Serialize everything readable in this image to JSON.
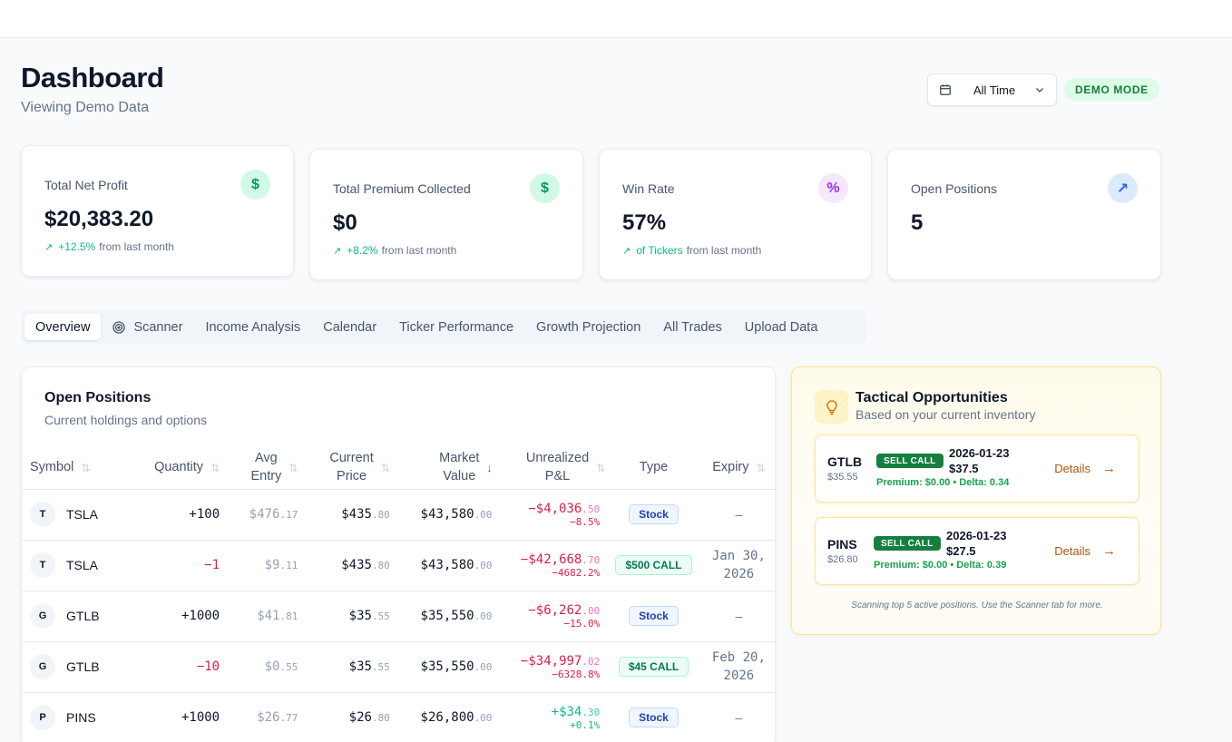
{
  "header": {
    "title": "Dashboard",
    "subtitle": "Viewing Demo Data"
  },
  "date_range": {
    "label": "All Time"
  },
  "demo_badge": "DEMO MODE",
  "stats": [
    {
      "label": "Total Net Profit",
      "value": "$20,383.20",
      "trend_pct": "+12.5%",
      "trend_text": "from last month",
      "icon": "dollar-icon",
      "icon_glyph": "$",
      "icon_bg": "#d1fae5",
      "icon_color": "#059669"
    },
    {
      "label": "Total Premium Collected",
      "value": "$0",
      "trend_pct": "+8.2%",
      "trend_text": "from last month",
      "icon": "dollar-icon",
      "icon_glyph": "$",
      "icon_bg": "#d1fae5",
      "icon_color": "#059669"
    },
    {
      "label": "Win Rate",
      "value": "57%",
      "trend_pct": "of Tickers",
      "trend_text": "from last month",
      "icon": "percent-icon",
      "icon_glyph": "%",
      "icon_bg": "#f3e8ff",
      "icon_color": "#9333ea"
    },
    {
      "label": "Open Positions",
      "value": "5",
      "icon": "arrow-up-right-icon",
      "icon_glyph": "↗",
      "icon_bg": "#dbeafe",
      "icon_color": "#2563eb"
    }
  ],
  "tabs": [
    {
      "label": "Overview",
      "active": true
    },
    {
      "label": "Scanner",
      "icon": "target-icon"
    },
    {
      "label": "Income Analysis"
    },
    {
      "label": "Calendar"
    },
    {
      "label": "Ticker Performance"
    },
    {
      "label": "Growth Projection"
    },
    {
      "label": "All Trades"
    },
    {
      "label": "Upload Data"
    }
  ],
  "open_positions": {
    "title": "Open Positions",
    "subtitle": "Current holdings and options",
    "columns": {
      "symbol": "Symbol",
      "quantity": "Quantity",
      "avg_entry": [
        "Avg",
        "Entry"
      ],
      "current_price": [
        "Current",
        "Price"
      ],
      "market_value": [
        "Market",
        "Value"
      ],
      "unrealized_pnl": [
        "Unrealized",
        "P&L"
      ],
      "type": "Type",
      "expiry": "Expiry"
    },
    "rows": [
      {
        "initial": "T",
        "symbol": "TSLA",
        "quantity": "+100",
        "quantity_neg": false,
        "avg_whole": "$476",
        "avg_cents": ".17",
        "cur_whole": "$435",
        "cur_cents": ".80",
        "mv_whole": "$43,580",
        "mv_cents": ".00",
        "pnl_whole": "−$4,036",
        "pnl_cents": ".50",
        "pnl_pct": "−8.5%",
        "pnl_neg": true,
        "type": "Stock",
        "type_kind": "stock",
        "expiry": [
          "–"
        ]
      },
      {
        "initial": "T",
        "symbol": "TSLA",
        "quantity": "−1",
        "quantity_neg": true,
        "avg_whole": "$9",
        "avg_cents": ".11",
        "cur_whole": "$435",
        "cur_cents": ".80",
        "mv_whole": "$43,580",
        "mv_cents": ".00",
        "pnl_whole": "−$42,668",
        "pnl_cents": ".70",
        "pnl_pct": "−4682.2%",
        "pnl_neg": true,
        "type": "$500 CALL",
        "type_kind": "call",
        "expiry": [
          "Jan 30,",
          "2026"
        ]
      },
      {
        "initial": "G",
        "symbol": "GTLB",
        "quantity": "+1000",
        "quantity_neg": false,
        "avg_whole": "$41",
        "avg_cents": ".81",
        "cur_whole": "$35",
        "cur_cents": ".55",
        "mv_whole": "$35,550",
        "mv_cents": ".00",
        "pnl_whole": "−$6,262",
        "pnl_cents": ".00",
        "pnl_pct": "−15.0%",
        "pnl_neg": true,
        "type": "Stock",
        "type_kind": "stock",
        "expiry": [
          "–"
        ]
      },
      {
        "initial": "G",
        "symbol": "GTLB",
        "quantity": "−10",
        "quantity_neg": true,
        "avg_whole": "$0",
        "avg_cents": ".55",
        "cur_whole": "$35",
        "cur_cents": ".55",
        "mv_whole": "$35,550",
        "mv_cents": ".00",
        "pnl_whole": "−$34,997",
        "pnl_cents": ".02",
        "pnl_pct": "−6328.8%",
        "pnl_neg": true,
        "type": "$45 CALL",
        "type_kind": "call",
        "expiry": [
          "Feb 20,",
          "2026"
        ]
      },
      {
        "initial": "P",
        "symbol": "PINS",
        "quantity": "+1000",
        "quantity_neg": false,
        "avg_whole": "$26",
        "avg_cents": ".77",
        "cur_whole": "$26",
        "cur_cents": ".80",
        "mv_whole": "$26,800",
        "mv_cents": ".00",
        "pnl_whole": "+$34",
        "pnl_cents": ".30",
        "pnl_pct": "+0.1%",
        "pnl_neg": false,
        "type": "Stock",
        "type_kind": "stock",
        "expiry": [
          "–"
        ]
      }
    ]
  },
  "tactical": {
    "title": "Tactical Opportunities",
    "subtitle": "Based on your current inventory",
    "items": [
      {
        "symbol": "GTLB",
        "price": "$35.55",
        "action": "SELL CALL",
        "date": "2026-01-23",
        "strike": "$37.5",
        "meta": "Premium: $0.00 • Delta: 0.34",
        "details_label": "Details"
      },
      {
        "symbol": "PINS",
        "price": "$26.80",
        "action": "SELL CALL",
        "date": "2026-01-23",
        "strike": "$27.5",
        "meta": "Premium: $0.00 • Delta: 0.39",
        "details_label": "Details"
      }
    ],
    "footer": "Scanning top 5 active positions. Use the Scanner tab for more."
  },
  "colors": {
    "accent_green": "#10b981",
    "negative": "#e11d48",
    "amber": "#b45309"
  }
}
